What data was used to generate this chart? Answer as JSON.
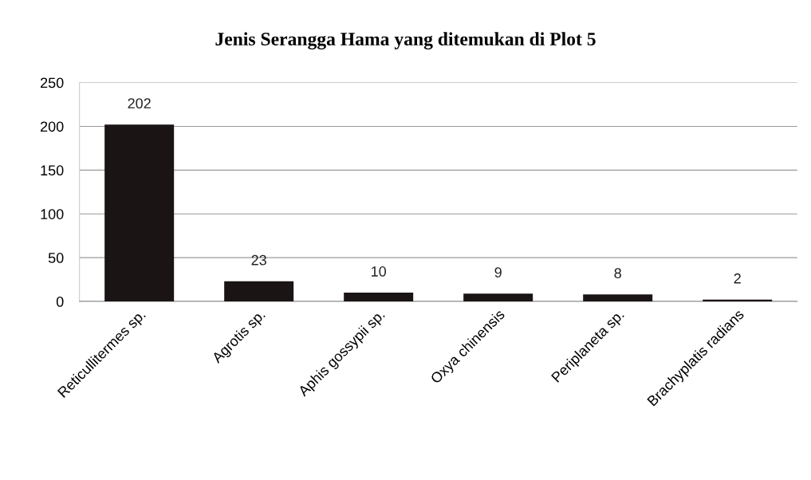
{
  "chart_data": {
    "type": "bar",
    "title": "Jenis Serangga Hama yang ditemukan di Plot 5",
    "categories": [
      "Reticullitermes sp.",
      "Agrotis sp.",
      "Aphis gossypii sp.",
      "Oxya chinensis",
      "Periplaneta sp.",
      "Brachyplatis radians"
    ],
    "values": [
      202,
      23,
      10,
      9,
      8,
      2
    ],
    "color": "#1a1414",
    "ylim": [
      0,
      250
    ],
    "yticks": [
      0,
      50,
      100,
      150,
      200,
      250
    ],
    "grid": "y",
    "data_labels": true,
    "legend": false
  }
}
